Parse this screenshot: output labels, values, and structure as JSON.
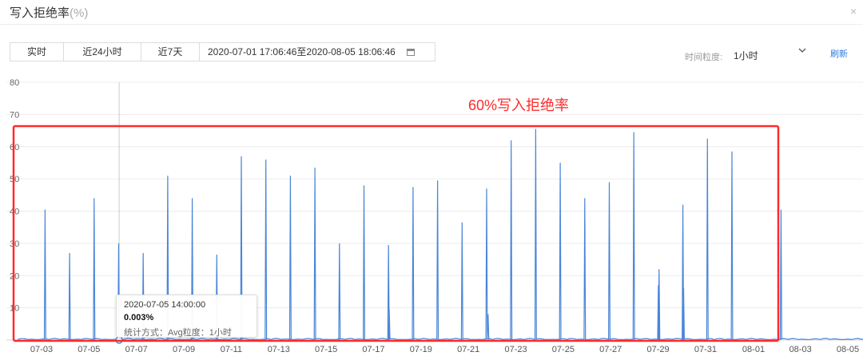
{
  "header": {
    "title": "写入拒绝率",
    "unit": "(%)",
    "close_icon": "×"
  },
  "toolbar": {
    "btn_realtime": "实时",
    "btn_24h": "近24小时",
    "btn_7d": "近7天",
    "range": "2020-07-01 17:06:46至2020-08-05 18:06:46",
    "calendar_icon": "calendar-icon",
    "granularity_label": "时间粒度:",
    "granularity_value": "1小时",
    "refresh": "刷新"
  },
  "annotation": {
    "text": "60%写入拒绝率",
    "color": "#ff2a2a"
  },
  "tooltip": {
    "time": "2020-07-05 14:00:00",
    "value": "0.003%",
    "stat": "统计方式：Avg粒度：1小时"
  },
  "chart_data": {
    "type": "line",
    "series_color": "#4a86d8",
    "ylim": [
      0,
      80
    ],
    "yticks": [
      "80",
      "70",
      "60",
      "50",
      "40",
      "30",
      "20",
      "10"
    ],
    "xticks": [
      "07-03",
      "07-05",
      "07-07",
      "07-09",
      "07-11",
      "07-13",
      "07-15",
      "07-17",
      "07-19",
      "07-21",
      "07-23",
      "07-25",
      "07-27",
      "07-29",
      "07-31",
      "08-01",
      "08-03",
      "08-05"
    ],
    "xlim_days": [
      0,
      35
    ],
    "spikes": [
      {
        "day": 1.12,
        "value": 40.5
      },
      {
        "day": 2.12,
        "value": 27
      },
      {
        "day": 3.12,
        "value": 44
      },
      {
        "day": 4.12,
        "value": 30
      },
      {
        "day": 5.12,
        "value": 27
      },
      {
        "day": 6.12,
        "value": 51
      },
      {
        "day": 7.12,
        "value": 44
      },
      {
        "day": 8.12,
        "value": 26.5
      },
      {
        "day": 9.12,
        "value": 57
      },
      {
        "day": 10.12,
        "value": 56
      },
      {
        "day": 11.12,
        "value": 51
      },
      {
        "day": 12.12,
        "value": 53.5
      },
      {
        "day": 13.12,
        "value": 30
      },
      {
        "day": 14.12,
        "value": 48
      },
      {
        "day": 15.12,
        "value": 29.5
      },
      {
        "day": 15.15,
        "value": 9.5
      },
      {
        "day": 16.12,
        "value": 47.5
      },
      {
        "day": 17.12,
        "value": 49.5
      },
      {
        "day": 18.12,
        "value": 36.5
      },
      {
        "day": 19.12,
        "value": 47
      },
      {
        "day": 19.18,
        "value": 8
      },
      {
        "day": 20.12,
        "value": 62
      },
      {
        "day": 21.12,
        "value": 65.5
      },
      {
        "day": 22.12,
        "value": 55
      },
      {
        "day": 23.12,
        "value": 44
      },
      {
        "day": 24.12,
        "value": 49
      },
      {
        "day": 25.12,
        "value": 64.5
      },
      {
        "day": 26.12,
        "value": 17
      },
      {
        "day": 26.15,
        "value": 22
      },
      {
        "day": 27.12,
        "value": 42
      },
      {
        "day": 27.15,
        "value": 16
      },
      {
        "day": 28.12,
        "value": 62.5
      },
      {
        "day": 29.12,
        "value": 58.5
      },
      {
        "day": 31.12,
        "value": 40.5
      }
    ],
    "hover_day": 4.14,
    "hover_value": 0.003
  }
}
